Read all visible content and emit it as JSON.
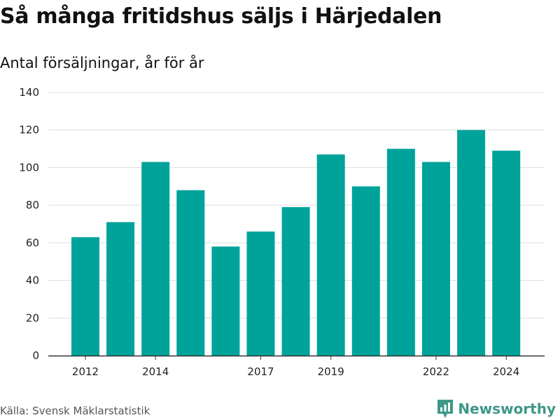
{
  "title": "Så många fritidshus säljs i Härjedalen",
  "subtitle": "Antal försäljningar, år för år",
  "source": "Källa: Svensk Mäklarstatistik",
  "brand": {
    "name": "Newsworthy",
    "color": "#3e9787",
    "icon": "newsworthy-logo-icon"
  },
  "chart_data": {
    "type": "bar",
    "title": "Så många fritidshus säljs i Härjedalen",
    "subtitle": "Antal försäljningar, år för år",
    "categories": [
      "2012",
      "2013",
      "2014",
      "2015",
      "2016",
      "2017",
      "2018",
      "2019",
      "2020",
      "2021",
      "2022",
      "2023",
      "2024"
    ],
    "values": [
      63,
      71,
      103,
      88,
      58,
      66,
      79,
      107,
      90,
      110,
      103,
      120,
      109
    ],
    "x_tick_labels": [
      "2012",
      "2014",
      "2017",
      "2019",
      "2022",
      "2024"
    ],
    "y_ticks": [
      0,
      20,
      40,
      60,
      80,
      100,
      120,
      140
    ],
    "ylim": [
      0,
      140
    ],
    "xlabel": "",
    "ylabel": "",
    "grid": true,
    "bar_color": "#00a39a",
    "gridline_color": "#dddddd"
  }
}
